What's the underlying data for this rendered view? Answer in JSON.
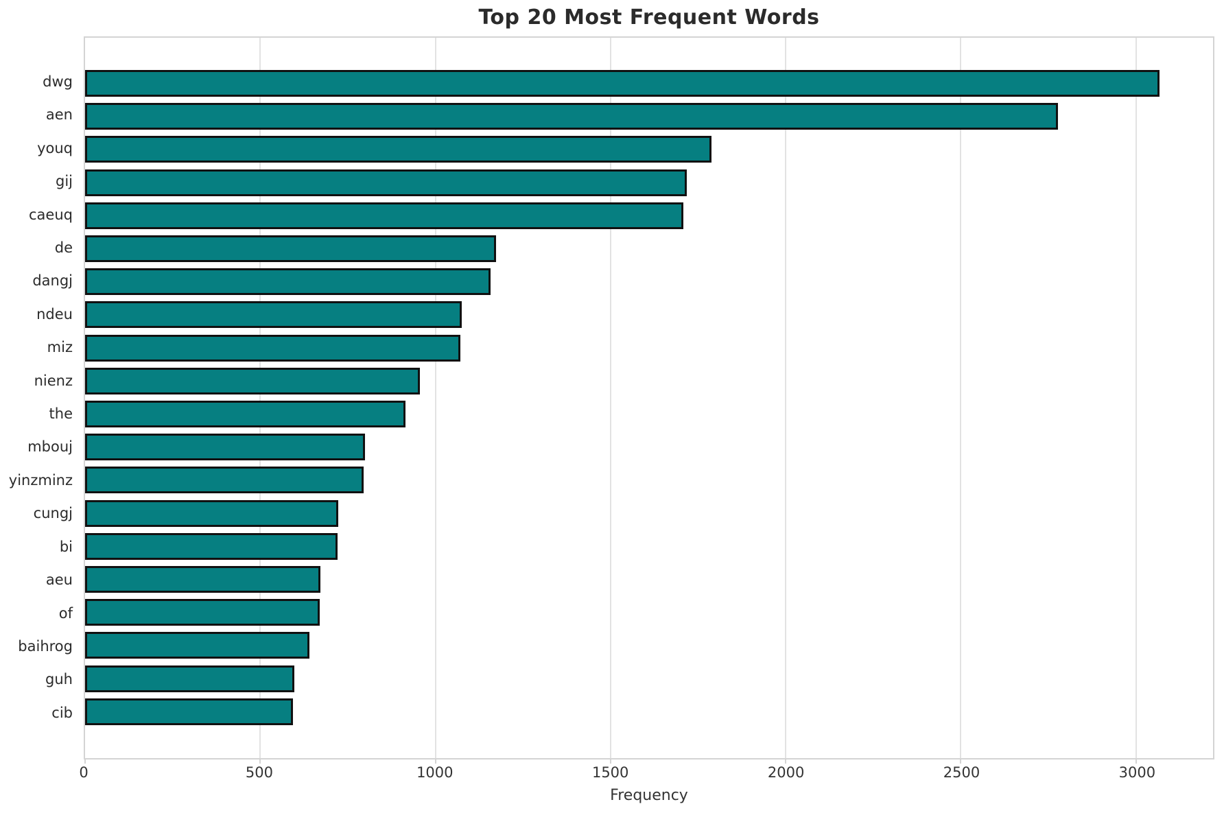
{
  "title": "Top 20 Most Frequent Words",
  "chart_data": {
    "type": "bar",
    "orientation": "horizontal",
    "title": "Top 20 Most Frequent Words",
    "xlabel": "Frequency",
    "ylabel": "",
    "categories": [
      "dwg",
      "aen",
      "youq",
      "gij",
      "caeuq",
      "de",
      "dangj",
      "ndeu",
      "miz",
      "nienz",
      "the",
      "mbouj",
      "yinzminz",
      "cungj",
      "bi",
      "aeu",
      "of",
      "baihrog",
      "guh",
      "cib"
    ],
    "values": [
      3067,
      2778,
      1789,
      1718,
      1707,
      1174,
      1157,
      1075,
      1072,
      956,
      915,
      800,
      795,
      722,
      720,
      672,
      670,
      640,
      597,
      594
    ],
    "xlim": [
      0,
      3220
    ],
    "xticks": [
      0,
      500,
      1000,
      1500,
      2000,
      2500,
      3000
    ],
    "grid": "vertical",
    "legend": "none",
    "bar_color": "#067f81",
    "bar_edge_color": "#111111",
    "grid_color": "#e2e2e2",
    "spine_color": "#d4d4d4",
    "text_color": "#2b2b2b"
  }
}
